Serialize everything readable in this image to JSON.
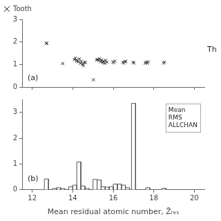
{
  "chart_data": [
    {
      "type": "scatter",
      "series": [
        {
          "name": "Tooth",
          "color": "#222222",
          "marker": "x",
          "x": [
            12.7,
            12.72,
            13.5,
            14.08,
            14.12,
            14.18,
            14.22,
            14.28,
            14.32,
            14.38,
            14.42,
            14.48,
            14.52,
            14.58,
            14.62,
            15.02,
            15.18,
            15.22,
            15.28,
            15.32,
            15.38,
            15.42,
            15.48,
            15.52,
            15.58,
            15.62,
            15.68,
            15.98,
            16.02,
            16.08,
            16.48,
            16.52,
            16.58,
            16.62,
            16.98,
            17.02,
            17.58,
            17.62,
            17.68,
            17.72,
            18.48,
            18.52
          ],
          "values": [
            1.93,
            1.95,
            1.04,
            1.22,
            1.28,
            1.18,
            1.15,
            1.12,
            1.25,
            1.05,
            1.14,
            1.02,
            0.95,
            1.08,
            1.1,
            0.32,
            1.2,
            1.22,
            1.18,
            1.25,
            1.12,
            1.2,
            1.08,
            1.15,
            1.05,
            1.18,
            1.1,
            1.12,
            1.08,
            1.15,
            1.1,
            1.06,
            1.12,
            1.14,
            1.1,
            1.06,
            1.06,
            1.1,
            1.06,
            1.12,
            1.06,
            1.1
          ]
        }
      ],
      "xlim": [
        11.5,
        20.5
      ],
      "ylim": [
        0,
        3
      ],
      "xticks": [
        12,
        14,
        16,
        18,
        20
      ],
      "yticks": [
        0,
        1,
        2,
        3
      ],
      "tick_labels": "y",
      "grid": false,
      "legend": "upper left",
      "panel_label": "(a)",
      "annotations": [
        "Th"
      ]
    },
    {
      "type": "bar",
      "xlabel": "Mean residual atomic number, Z̄ᵣₑₛ",
      "bin_left": [
        12.6,
        13.0,
        13.2,
        13.4,
        13.8,
        14.0,
        14.2,
        14.4,
        14.6,
        15.0,
        15.2,
        15.4,
        15.6,
        15.8,
        16.0,
        16.2,
        16.4,
        16.6,
        16.9,
        17.6,
        18.4
      ],
      "bin_right": [
        12.8,
        13.2,
        13.4,
        13.6,
        14.0,
        14.2,
        14.4,
        14.6,
        14.8,
        15.2,
        15.4,
        15.6,
        15.8,
        16.0,
        16.2,
        16.4,
        16.6,
        16.8,
        17.1,
        17.8,
        18.6
      ],
      "values": [
        0.42,
        0.05,
        0.08,
        0.05,
        0.12,
        0.18,
        1.08,
        0.15,
        0.05,
        0.4,
        0.38,
        0.12,
        0.1,
        0.12,
        0.22,
        0.22,
        0.18,
        0.08,
        3.35,
        0.08,
        0.06
      ],
      "color": "#ffffff",
      "edge_color": "#555555",
      "xlim": [
        11.5,
        20.5
      ],
      "ylim": [
        0,
        3.5
      ],
      "xticks": [
        12,
        14,
        16,
        18,
        20
      ],
      "yticks": [
        0,
        1,
        2,
        3
      ],
      "grid": false,
      "panel_label": "(b)",
      "text_box": [
        "Mean",
        "RMS",
        "ALLCHAN"
      ]
    }
  ]
}
